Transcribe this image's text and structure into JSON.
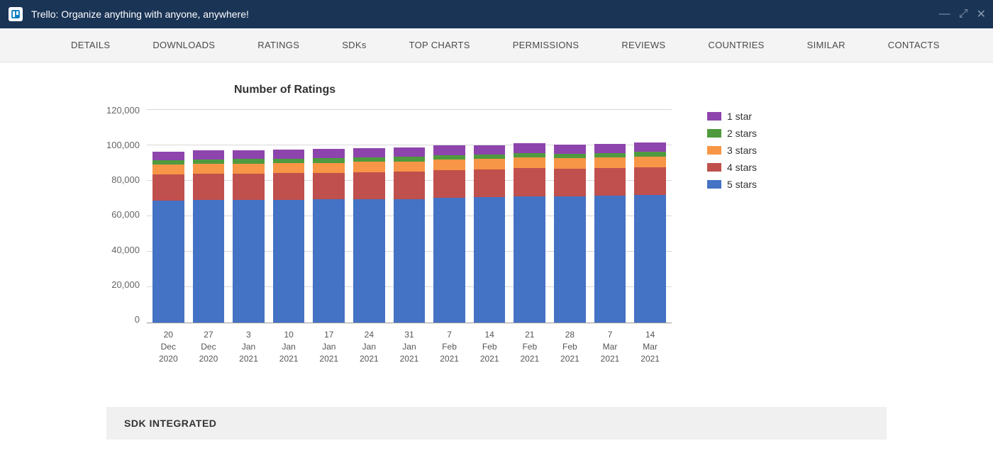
{
  "top_bar": {
    "title": "Trello: Organize anything with anyone, anywhere!",
    "bg_color": "#1a3456",
    "icon_color": "#0079bf"
  },
  "nav": {
    "items": [
      "DETAILS",
      "DOWNLOADS",
      "RATINGS",
      "SDKs",
      "TOP CHARTS",
      "PERMISSIONS",
      "REVIEWS",
      "COUNTRIES",
      "SIMILAR",
      "CONTACTS"
    ],
    "bg_color": "#f4f4f4"
  },
  "chart": {
    "title": "Number of Ratings",
    "type": "stacked-bar",
    "ylim": [
      0,
      120000
    ],
    "ytick_step": 20000,
    "yticks": [
      "120,000",
      "100,000",
      "80,000",
      "60,000",
      "40,000",
      "20,000",
      "0"
    ],
    "grid_color": "#d8d8d8",
    "background_color": "#ffffff",
    "categories": [
      "20 Dec 2020",
      "27 Dec 2020",
      "3 Jan 2021",
      "10 Jan 2021",
      "17 Jan 2021",
      "24 Jan 2021",
      "31 Jan 2021",
      "7 Feb 2021",
      "14 Feb 2021",
      "21 Feb 2021",
      "28 Feb 2021",
      "7 Mar 2021",
      "14 Mar 2021"
    ],
    "series": [
      {
        "name": "5 stars",
        "color": "#4472c4",
        "values": [
          69000,
          69200,
          69300,
          69400,
          69500,
          69700,
          69800,
          70500,
          70700,
          71200,
          71300,
          71600,
          72000
        ]
      },
      {
        "name": "4 stars",
        "color": "#c0504d",
        "values": [
          14500,
          14700,
          14800,
          14900,
          15000,
          15200,
          15300,
          15600,
          15700,
          15900,
          15400,
          15500,
          15700
        ]
      },
      {
        "name": "3 stars",
        "color": "#f79646",
        "values": [
          5600,
          5600,
          5650,
          5700,
          5700,
          5750,
          5800,
          5900,
          5950,
          6000,
          6000,
          6050,
          6100
        ]
      },
      {
        "name": "2 stars",
        "color": "#4f9a3f",
        "values": [
          2500,
          2500,
          2500,
          2550,
          2550,
          2550,
          2600,
          2600,
          2600,
          2650,
          2650,
          2650,
          2700
        ]
      },
      {
        "name": "1 star",
        "color": "#8e44ad",
        "values": [
          5000,
          5050,
          5050,
          5100,
          5100,
          5150,
          5150,
          5250,
          5250,
          5300,
          5000,
          5050,
          5200
        ]
      }
    ],
    "legend_order": [
      "1 star",
      "2 stars",
      "3 stars",
      "4 stars",
      "5 stars"
    ]
  },
  "sdk_section": {
    "title": "SDK INTEGRATED",
    "bg_color": "#f0f0f0"
  }
}
